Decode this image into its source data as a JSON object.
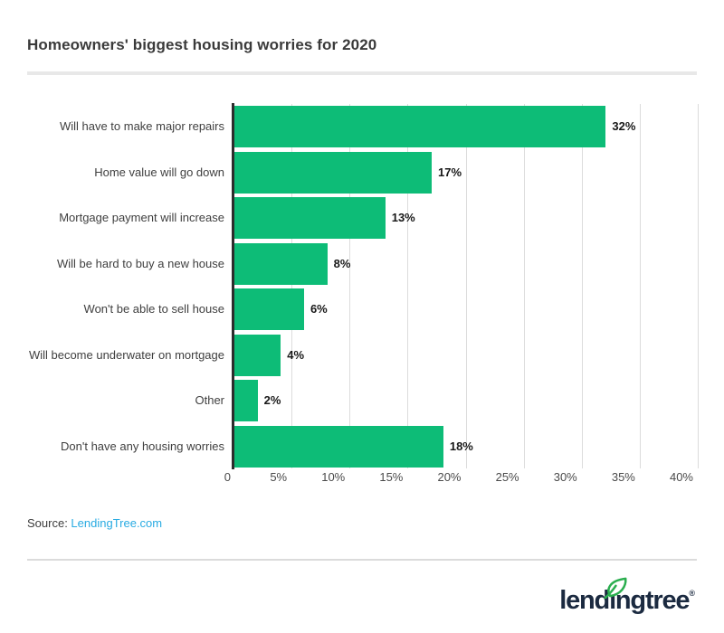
{
  "title": "Homeowners' biggest housing worries for 2020",
  "source": {
    "label": "Source: ",
    "link_text": "LendingTree.com"
  },
  "logo": {
    "text": "lendingtree",
    "registered": "®"
  },
  "colors": {
    "bar_green": "#0dbc77",
    "link_blue": "#29abe2",
    "logo_navy": "#1b2a40",
    "leaf_green": "#2bae4f",
    "gridline_gray": "#dcdcdc",
    "axis_dark": "#2d2d2d"
  },
  "chart_data": {
    "type": "bar",
    "orientation": "horizontal",
    "title": "Homeowners' biggest housing worries for 2020",
    "categories": [
      "Will have to make major repairs",
      "Home value will go down",
      "Mortgage payment will increase",
      "Will be hard to buy a new house",
      "Won't be able to sell house",
      "Will become underwater on mortgage",
      "Other",
      "Don't have any housing worries"
    ],
    "values": [
      32,
      17,
      13,
      8,
      6,
      4,
      2,
      18
    ],
    "value_labels": [
      "32%",
      "17%",
      "13%",
      "8%",
      "6%",
      "4%",
      "2%",
      "18%"
    ],
    "xlabel": "",
    "ylabel": "",
    "xlim": [
      0,
      40
    ],
    "xticks": [
      {
        "label": "0",
        "value": 0
      },
      {
        "label": "5%",
        "value": 5
      },
      {
        "label": "10%",
        "value": 10
      },
      {
        "label": "15%",
        "value": 15
      },
      {
        "label": "20%",
        "value": 20
      },
      {
        "label": "25%",
        "value": 25
      },
      {
        "label": "30%",
        "value": 30
      },
      {
        "label": "35%",
        "value": 35
      },
      {
        "label": "40%",
        "value": 40
      }
    ],
    "grid": "vertical-only",
    "legend": "none",
    "bar_color": "#0dbc77"
  }
}
